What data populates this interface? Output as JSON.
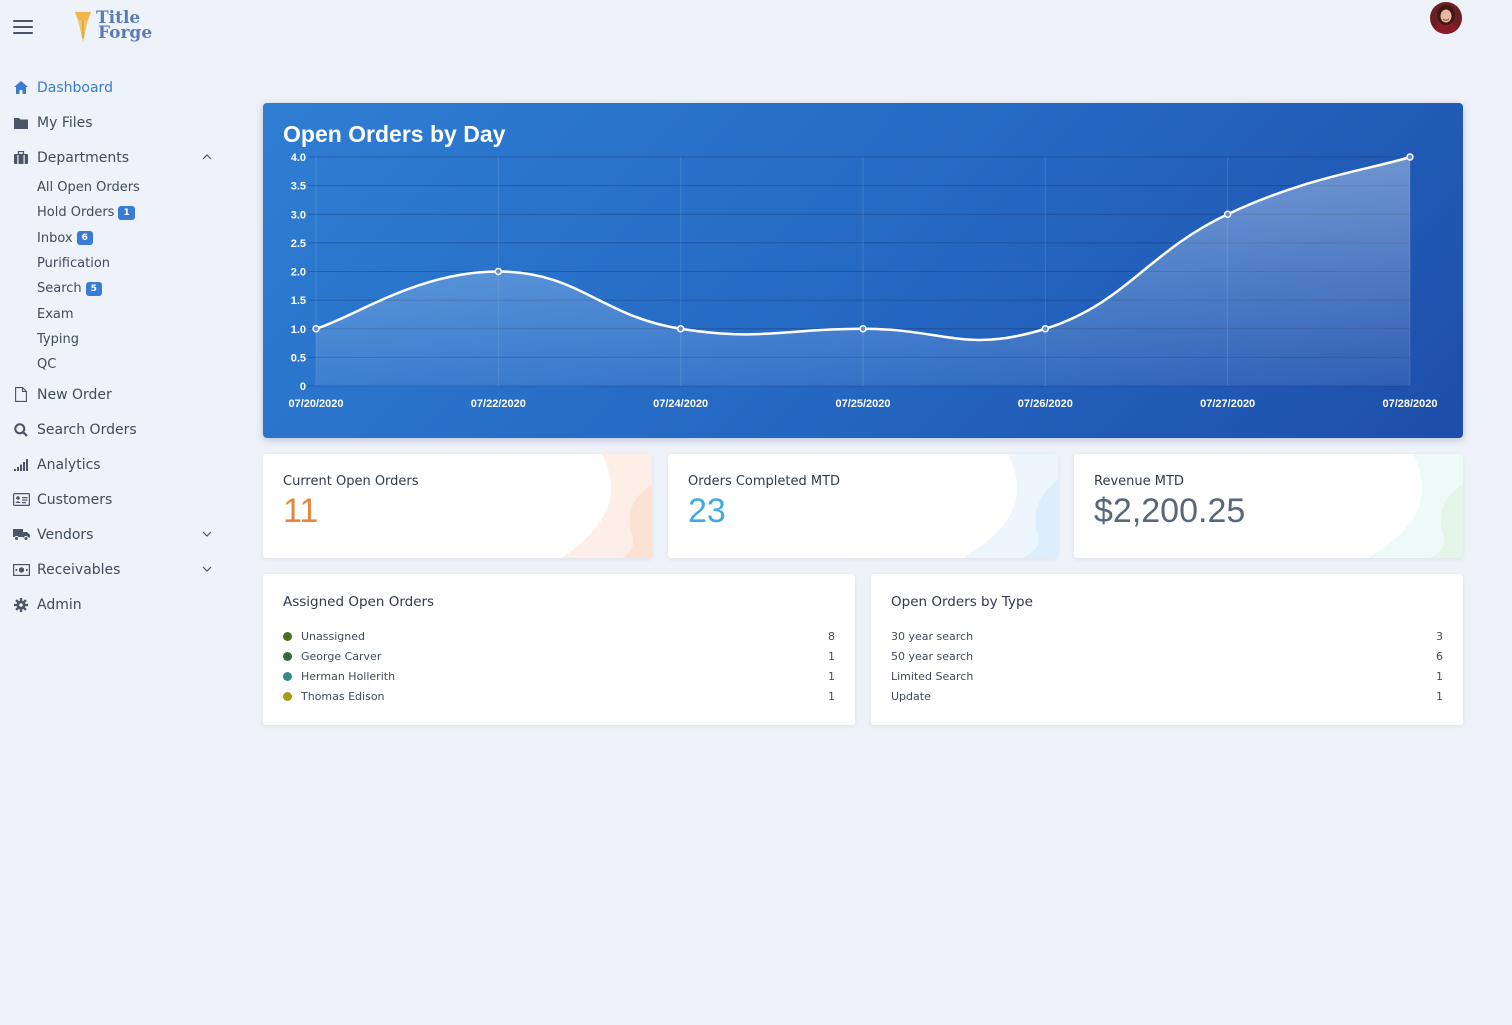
{
  "brand": {
    "line1": "Title",
    "line2": "Forge"
  },
  "sidebar": {
    "items": [
      {
        "label": "Dashboard",
        "icon": "home-icon"
      },
      {
        "label": "My Files",
        "icon": "folder-icon"
      },
      {
        "label": "Departments",
        "icon": "briefcase-icon"
      },
      {
        "label": "New Order",
        "icon": "file-icon"
      },
      {
        "label": "Search Orders",
        "icon": "search-icon"
      },
      {
        "label": "Analytics",
        "icon": "bar-chart-icon"
      },
      {
        "label": "Customers",
        "icon": "id-card-icon"
      },
      {
        "label": "Vendors",
        "icon": "truck-icon"
      },
      {
        "label": "Receivables",
        "icon": "money-icon"
      },
      {
        "label": "Admin",
        "icon": "gear-icon"
      }
    ],
    "departments": [
      {
        "label": "All Open Orders",
        "badge": ""
      },
      {
        "label": "Hold Orders",
        "badge": "1"
      },
      {
        "label": "Inbox",
        "badge": "6"
      },
      {
        "label": "Purification",
        "badge": ""
      },
      {
        "label": "Search",
        "badge": "5"
      },
      {
        "label": "Exam",
        "badge": ""
      },
      {
        "label": "Typing",
        "badge": ""
      },
      {
        "label": "QC",
        "badge": ""
      }
    ]
  },
  "chart": {
    "title": "Open Orders by Day"
  },
  "chart_data": {
    "type": "area",
    "title": "Open Orders by Day",
    "x": [
      "07/20/2020",
      "07/22/2020",
      "07/24/2020",
      "07/25/2020",
      "07/26/2020",
      "07/27/2020",
      "07/28/2020"
    ],
    "series": [
      {
        "values": [
          1,
          2,
          1,
          1,
          1,
          3,
          4
        ]
      }
    ],
    "yticks": [
      "0",
      "0.5",
      "1.0",
      "1.5",
      "2.0",
      "2.5",
      "3.0",
      "3.5",
      "4.0"
    ],
    "ylim": [
      0,
      4
    ],
    "grid": true,
    "line_color": "#ffffff"
  },
  "stats": {
    "open_label": "Current Open Orders",
    "open_value": "11",
    "completed_label": "Orders Completed MTD",
    "completed_value": "23",
    "revenue_label": "Revenue MTD",
    "revenue_value": "$2,200.25"
  },
  "colors": {
    "accent": "#3a7bd5",
    "open_value": "#e8853a",
    "completed_value": "#44a8e6",
    "revenue_value": "#5a6679"
  },
  "assigned": {
    "title": "Assigned Open Orders",
    "rows": [
      {
        "name": "Unassigned",
        "count": "8",
        "color": "#4a6e1c"
      },
      {
        "name": "George Carver",
        "count": "1",
        "color": "#2e6b40"
      },
      {
        "name": "Herman Hollerith",
        "count": "1",
        "color": "#3b8a8a"
      },
      {
        "name": "Thomas Edison",
        "count": "1",
        "color": "#a89a13"
      }
    ]
  },
  "by_type": {
    "title": "Open Orders by Type",
    "rows": [
      {
        "name": "30 year search",
        "count": "3"
      },
      {
        "name": "50 year search",
        "count": "6"
      },
      {
        "name": "Limited Search",
        "count": "1"
      },
      {
        "name": "Update",
        "count": "1"
      }
    ]
  }
}
